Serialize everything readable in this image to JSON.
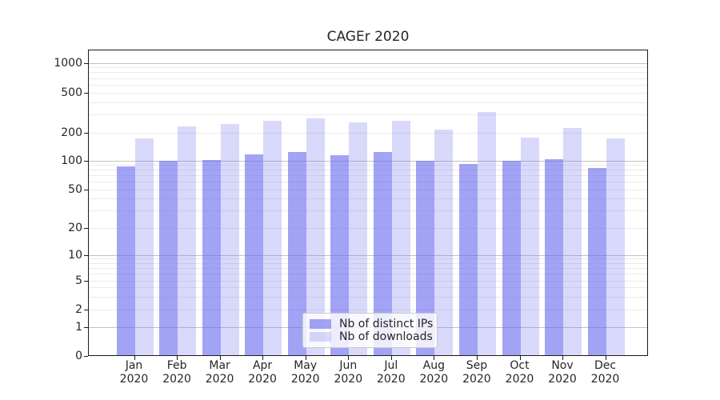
{
  "chart_data": {
    "type": "bar",
    "title": "CAGEr 2020",
    "categories": [
      "Jan\n2020",
      "Feb\n2020",
      "Mar\n2020",
      "Apr\n2020",
      "May\n2020",
      "Jun\n2020",
      "Jul\n2020",
      "Aug\n2020",
      "Sep\n2020",
      "Oct\n2020",
      "Nov\n2020",
      "Dec\n2020"
    ],
    "series": [
      {
        "name": "Nb of distinct IPs",
        "fill": "rgba(102,102,238,0.6)",
        "values": [
          85,
          97,
          100,
          114,
          120,
          112,
          122,
          98,
          90,
          98,
          102,
          81
        ]
      },
      {
        "name": "Nb of downloads",
        "fill": "rgba(102,102,238,0.25)",
        "values": [
          170,
          225,
          240,
          255,
          270,
          245,
          258,
          210,
          315,
          174,
          219,
          170
        ]
      }
    ],
    "yticks": [
      0,
      1,
      2,
      5,
      10,
      20,
      50,
      100,
      200,
      500,
      1000
    ],
    "ylim": [
      0,
      1300
    ],
    "scale": "symlog",
    "grid": "both",
    "legend_position": "lower center",
    "xlabel": "",
    "ylabel": ""
  },
  "colors": {
    "bar_base": "#6666ee",
    "grid_major": "#c3c3c3",
    "grid_minor": "#ebebeb",
    "axis": "#1a1a1a",
    "text": "#262626"
  }
}
